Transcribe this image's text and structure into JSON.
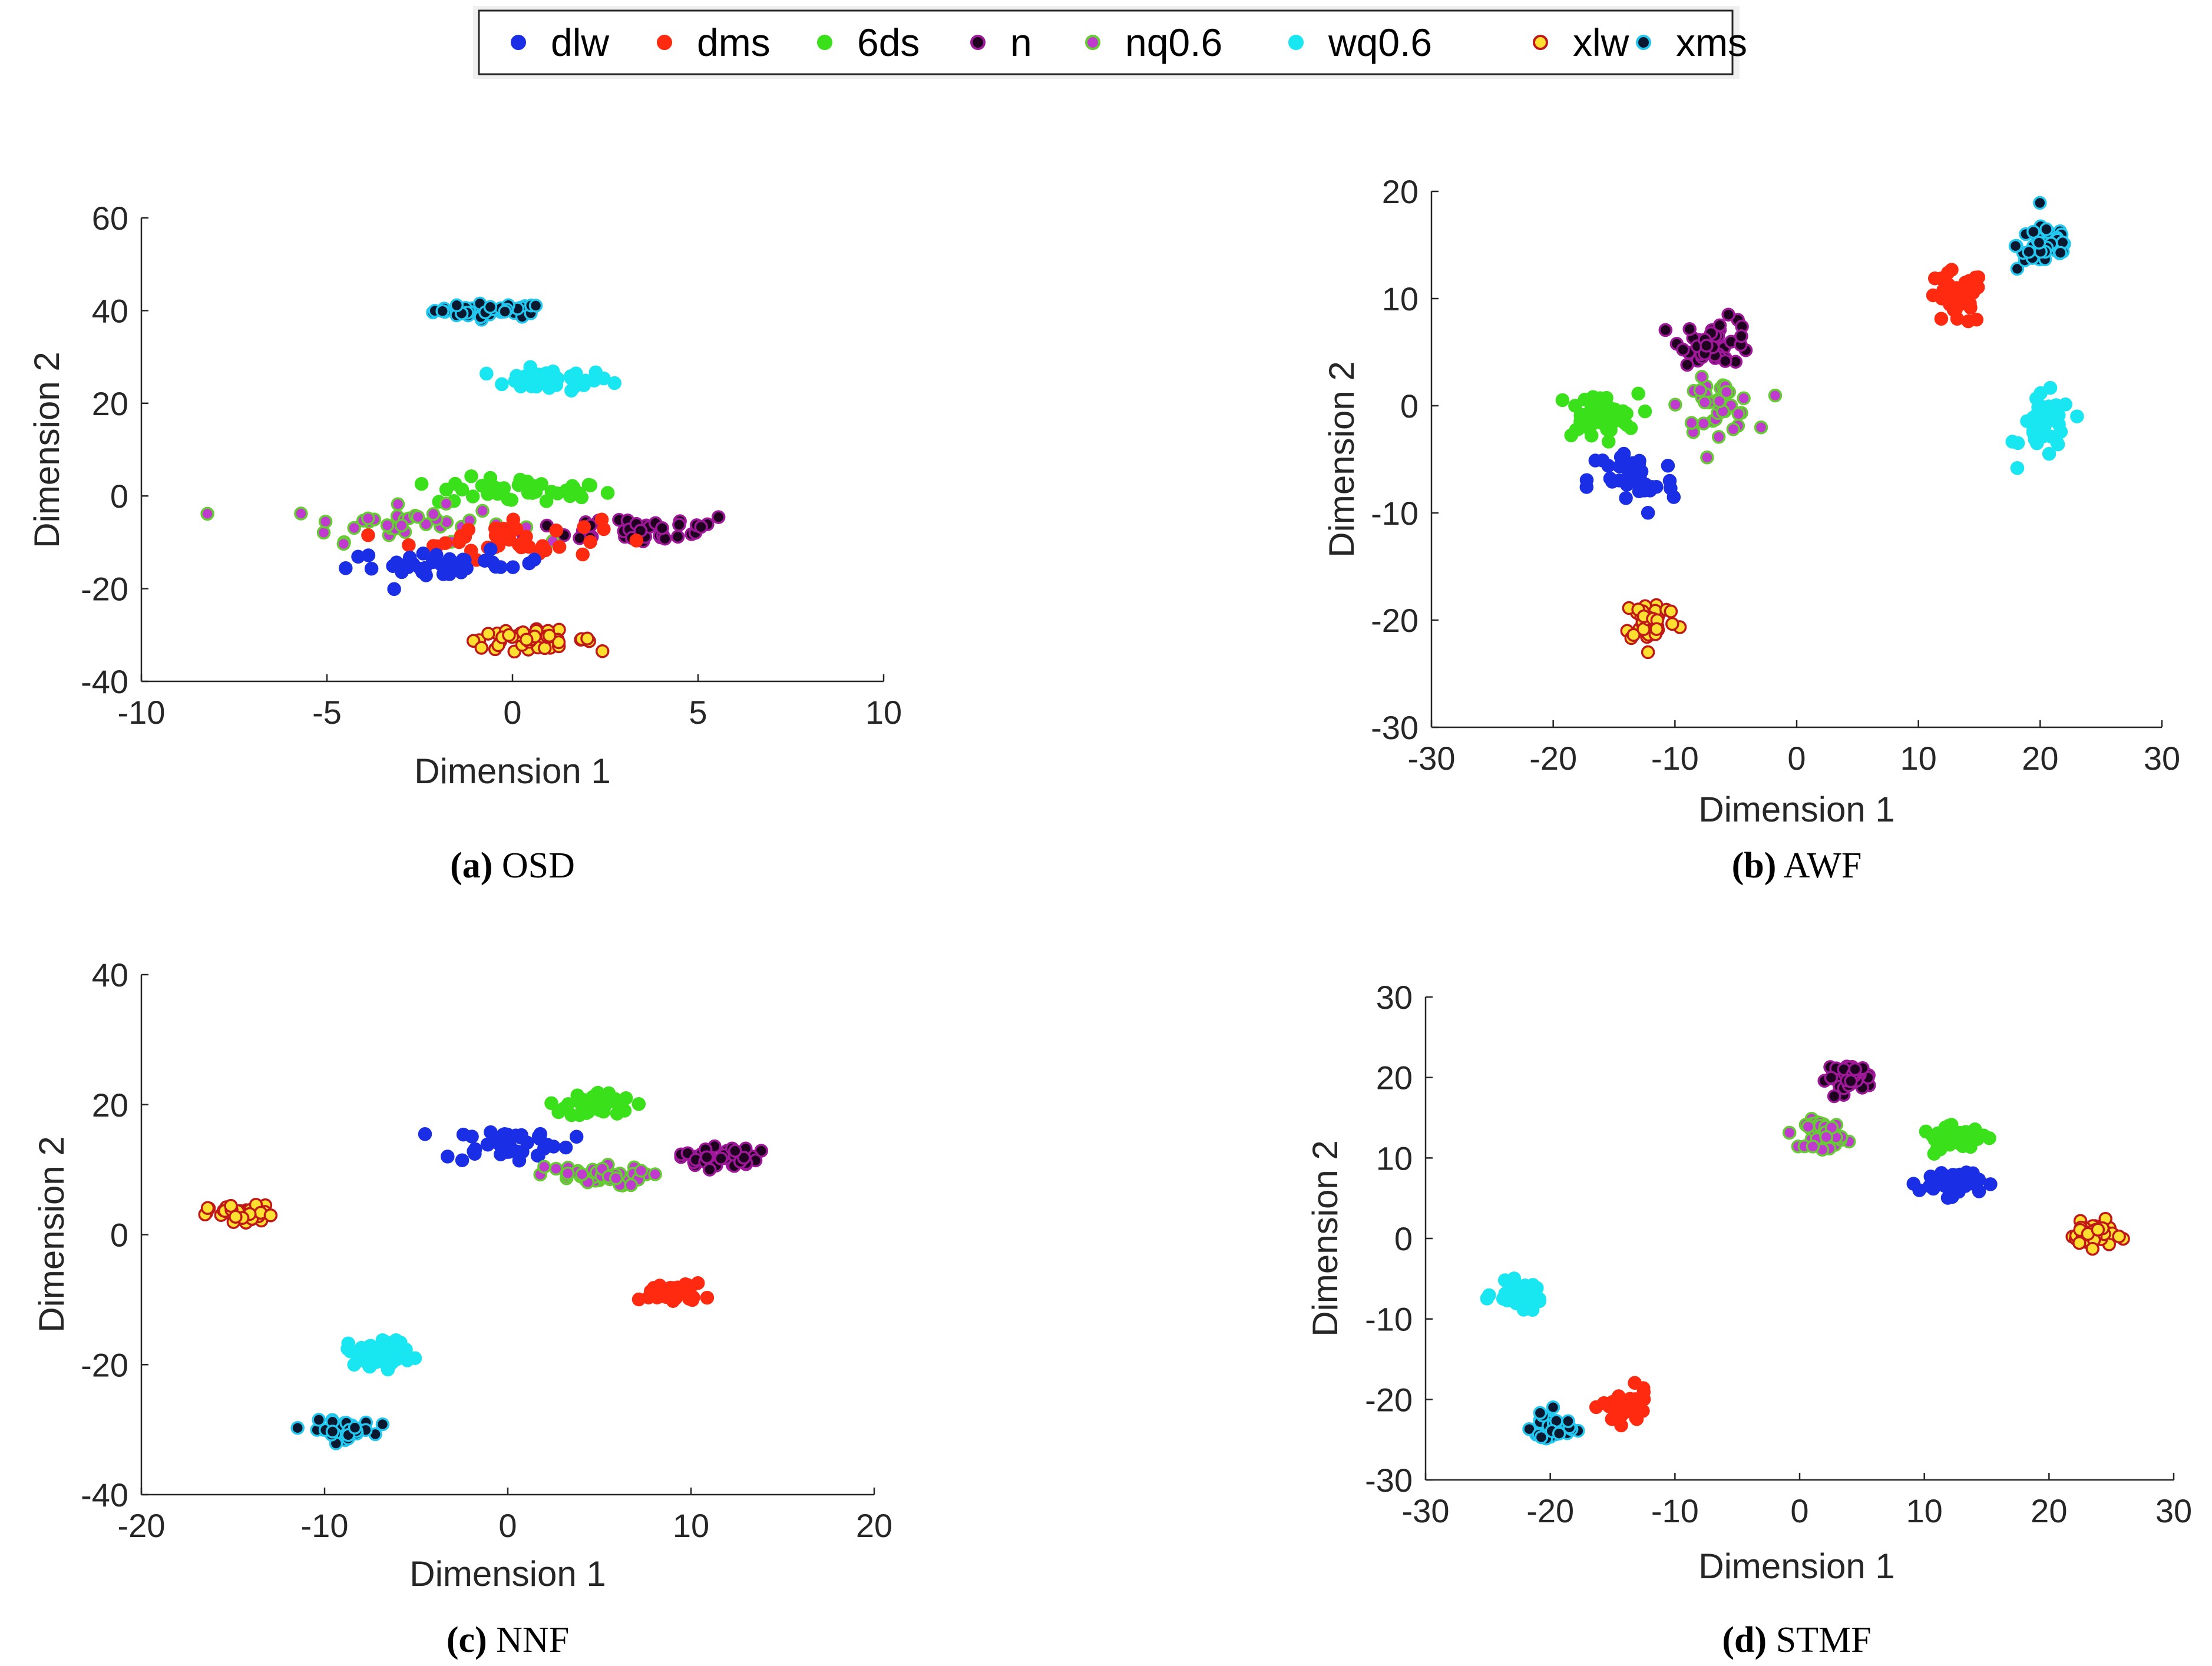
{
  "legend": [
    {
      "name": "dlw",
      "fill": "#1a2ee6",
      "stroke": "#1a2ee6"
    },
    {
      "name": "dms",
      "fill": "#ff2a10",
      "stroke": "#ff2a10"
    },
    {
      "name": "6ds",
      "fill": "#3ae01a",
      "stroke": "#3ae01a"
    },
    {
      "name": "n",
      "fill": "#200020",
      "stroke": "#a0189a"
    },
    {
      "name": "nq0.6",
      "fill": "#c03ad0",
      "stroke": "#66cc33"
    },
    {
      "name": "wq0.6",
      "fill": "#18e6f0",
      "stroke": "#18e6f0"
    },
    {
      "name": "xlw",
      "fill": "#ffe030",
      "stroke": "#c01818"
    },
    {
      "name": "xms",
      "fill": "#0a1830",
      "stroke": "#22c8f0"
    }
  ],
  "chart_data": [
    {
      "type": "scatter",
      "caption_letter": "(a)",
      "caption_name": "OSD",
      "xlabel": "Dimension 1",
      "ylabel": "Dimension 2",
      "xlim": [
        -10,
        10
      ],
      "ylim": [
        -40,
        60
      ],
      "xticks": [
        -10,
        -5,
        0,
        5,
        10
      ],
      "yticks": [
        -40,
        -20,
        0,
        20,
        40,
        60
      ],
      "xtick_labels": [
        "-10",
        "-5",
        "0",
        "5",
        "10"
      ],
      "ytick_labels": [
        "-40",
        "-20",
        "0",
        "20",
        "40",
        "60"
      ],
      "clusters": [
        {
          "series": "xms",
          "cx": -0.6,
          "cy": 40,
          "sx": 1.0,
          "sy": 1.0,
          "n": 45
        },
        {
          "series": "wq0.6",
          "cx": 1.0,
          "cy": 25,
          "sx": 1.1,
          "sy": 1.5,
          "n": 40
        },
        {
          "series": "6ds",
          "cx": 0.3,
          "cy": 1,
          "sx": 1.6,
          "sy": 2.0,
          "n": 40
        },
        {
          "series": "n",
          "cx": 3.4,
          "cy": -7,
          "sx": 1.9,
          "sy": 2.2,
          "n": 40
        },
        {
          "series": "nq0.6",
          "cx": -3.0,
          "cy": -6,
          "sx": 2.0,
          "sy": 2.5,
          "n": 40
        },
        {
          "series": "dms",
          "cx": -0.2,
          "cy": -9,
          "sx": 1.7,
          "sy": 3.0,
          "n": 40
        },
        {
          "series": "dlw",
          "cx": -1.8,
          "cy": -15,
          "sx": 1.8,
          "sy": 2.0,
          "n": 38
        },
        {
          "series": "xlw",
          "cx": 0.4,
          "cy": -31,
          "sx": 1.2,
          "sy": 1.3,
          "n": 45
        }
      ]
    },
    {
      "type": "scatter",
      "caption_letter": "(b)",
      "caption_name": "AWF",
      "xlabel": "Dimension 1",
      "ylabel": "Dimension 2",
      "xlim": [
        -30,
        30
      ],
      "ylim": [
        -30,
        20
      ],
      "xticks": [
        -30,
        -20,
        -10,
        0,
        10,
        20,
        30
      ],
      "yticks": [
        -30,
        -20,
        -10,
        0,
        10,
        20
      ],
      "xtick_labels": [
        "-30",
        "-20",
        "-10",
        "0",
        "10",
        "20",
        "30"
      ],
      "ytick_labels": [
        "-30",
        "-20",
        "-10",
        "0",
        "10",
        "20"
      ],
      "clusters": [
        {
          "series": "xms",
          "cx": 20.5,
          "cy": 15,
          "sx": 1.6,
          "sy": 1.6,
          "n": 45
        },
        {
          "series": "dms",
          "cx": 13,
          "cy": 10,
          "sx": 1.6,
          "sy": 1.7,
          "n": 42
        },
        {
          "series": "wq0.6",
          "cx": 20.5,
          "cy": -2,
          "sx": 1.4,
          "sy": 2.0,
          "n": 40
        },
        {
          "series": "n",
          "cx": -6.5,
          "cy": 6,
          "sx": 2.0,
          "sy": 1.4,
          "n": 45
        },
        {
          "series": "nq0.6",
          "cx": -6.5,
          "cy": 0,
          "sx": 2.0,
          "sy": 1.6,
          "n": 42
        },
        {
          "series": "6ds",
          "cx": -16.5,
          "cy": -1,
          "sx": 2.3,
          "sy": 1.4,
          "n": 45
        },
        {
          "series": "dlw",
          "cx": -13.5,
          "cy": -7,
          "sx": 2.4,
          "sy": 2.2,
          "n": 40
        },
        {
          "series": "xlw",
          "cx": -12,
          "cy": -20,
          "sx": 1.5,
          "sy": 1.4,
          "n": 40
        }
      ]
    },
    {
      "type": "scatter",
      "caption_letter": "(c)",
      "caption_name": "NNF",
      "xlabel": "Dimension 1",
      "ylabel": "Dimension 2",
      "xlim": [
        -20,
        20
      ],
      "ylim": [
        -40,
        40
      ],
      "xticks": [
        -20,
        -10,
        0,
        10,
        20
      ],
      "yticks": [
        -40,
        -20,
        0,
        20,
        40
      ],
      "xtick_labels": [
        "-20",
        "-10",
        "0",
        "10",
        "20"
      ],
      "ytick_labels": [
        "-40",
        "-20",
        "0",
        "20",
        "40"
      ],
      "clusters": [
        {
          "series": "6ds",
          "cx": 5,
          "cy": 20,
          "sx": 1.2,
          "sy": 1.3,
          "n": 42
        },
        {
          "series": "dlw",
          "cx": 0,
          "cy": 14,
          "sx": 2.3,
          "sy": 1.8,
          "n": 42
        },
        {
          "series": "nq0.6",
          "cx": 4.5,
          "cy": 9,
          "sx": 2.0,
          "sy": 1.0,
          "n": 42
        },
        {
          "series": "n",
          "cx": 11.5,
          "cy": 12,
          "sx": 1.4,
          "sy": 1.2,
          "n": 40
        },
        {
          "series": "xlw",
          "cx": -14.5,
          "cy": 3,
          "sx": 1.2,
          "sy": 1.0,
          "n": 45
        },
        {
          "series": "dms",
          "cx": 9,
          "cy": -9,
          "sx": 1.1,
          "sy": 1.0,
          "n": 45
        },
        {
          "series": "wq0.6",
          "cx": -7,
          "cy": -18,
          "sx": 1.2,
          "sy": 1.4,
          "n": 45
        },
        {
          "series": "xms",
          "cx": -9,
          "cy": -30,
          "sx": 1.1,
          "sy": 0.9,
          "n": 45
        }
      ]
    },
    {
      "type": "scatter",
      "caption_letter": "(d)",
      "caption_name": "STMF",
      "xlabel": "Dimension 1",
      "ylabel": "Dimension 2",
      "xlim": [
        -30,
        30
      ],
      "ylim": [
        -30,
        30
      ],
      "xticks": [
        -30,
        -20,
        -10,
        0,
        10,
        20,
        30
      ],
      "yticks": [
        -30,
        -20,
        -10,
        0,
        10,
        20,
        30
      ],
      "xtick_labels": [
        "-30",
        "-20",
        "-10",
        "0",
        "10",
        "20",
        "30"
      ],
      "ytick_labels": [
        "-30",
        "-20",
        "-10",
        "0",
        "10",
        "20",
        "30"
      ],
      "clusters": [
        {
          "series": "n",
          "cx": 4,
          "cy": 20,
          "sx": 1.2,
          "sy": 1.1,
          "n": 45
        },
        {
          "series": "nq0.6",
          "cx": 2,
          "cy": 13,
          "sx": 1.0,
          "sy": 1.2,
          "n": 42
        },
        {
          "series": "6ds",
          "cx": 12.5,
          "cy": 12.5,
          "sx": 1.8,
          "sy": 0.9,
          "n": 45
        },
        {
          "series": "dlw",
          "cx": 12,
          "cy": 7,
          "sx": 1.6,
          "sy": 1.1,
          "n": 42
        },
        {
          "series": "xlw",
          "cx": 23.5,
          "cy": 0.5,
          "sx": 1.2,
          "sy": 1.0,
          "n": 45
        },
        {
          "series": "wq0.6",
          "cx": -22.5,
          "cy": -7,
          "sx": 1.3,
          "sy": 1.0,
          "n": 45
        },
        {
          "series": "dms",
          "cx": -14,
          "cy": -21,
          "sx": 1.2,
          "sy": 1.4,
          "n": 45
        },
        {
          "series": "xms",
          "cx": -20,
          "cy": -23.5,
          "sx": 1.0,
          "sy": 1.3,
          "n": 48
        }
      ]
    }
  ]
}
